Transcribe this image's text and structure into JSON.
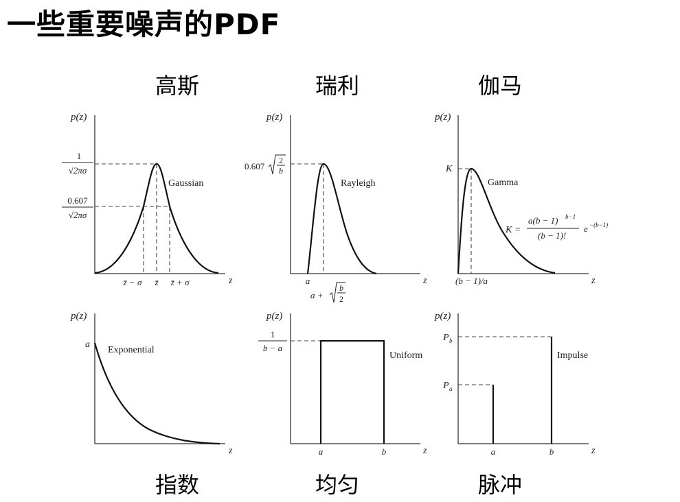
{
  "title": "一些重要噪声的PDF",
  "top_labels": [
    "高斯",
    "瑞利",
    "伽马"
  ],
  "bottom_labels": [
    "指数",
    "均匀",
    "脉冲"
  ],
  "axis": {
    "y": "p(z)",
    "x": "z"
  },
  "panels": {
    "gaussian": {
      "name": "Gaussian",
      "peak_num": "1",
      "peak_den": "√2πσ",
      "side_num": "0.607",
      "side_den": "√2πσ",
      "tick_left": "z̄ − σ",
      "tick_mid": "z̄",
      "tick_right": "z̄ + σ"
    },
    "rayleigh": {
      "name": "Rayleigh",
      "peak_coef": "0.607",
      "peak_frac_num": "2",
      "peak_frac_den": "b",
      "tick_a": "a",
      "tick_peak": "a +",
      "tick_peak_num": "b",
      "tick_peak_den": "2"
    },
    "gamma": {
      "name": "Gamma",
      "peak_label": "K",
      "formula_lhs": "K =",
      "formula_num": "a(b − 1)",
      "formula_num_exp": "b−1",
      "formula_den": "(b − 1)!",
      "formula_exp_base": "e",
      "formula_exp": "−(b−1)",
      "tick_peak": "(b − 1)/a"
    },
    "exponential": {
      "name": "Exponential",
      "y_label": "a"
    },
    "uniform": {
      "name": "Uniform",
      "height_num": "1",
      "height_den": "b − a",
      "tick_a": "a",
      "tick_b": "b"
    },
    "impulse": {
      "name": "Impulse",
      "label_pb": "P",
      "label_pb_sub": "b",
      "label_pa": "P",
      "label_pa_sub": "a",
      "tick_a": "a",
      "tick_b": "b"
    }
  }
}
